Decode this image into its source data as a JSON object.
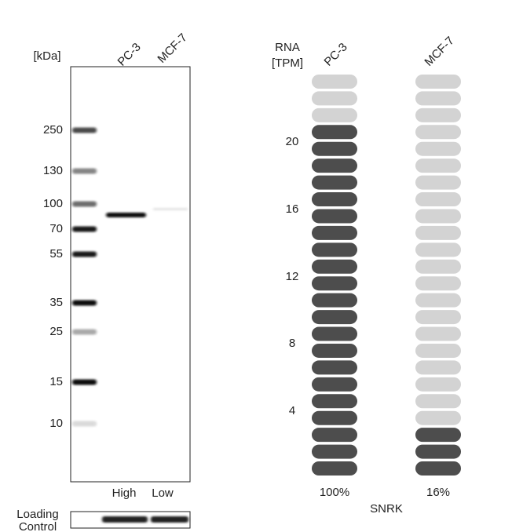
{
  "blot": {
    "unit_label": "[kDa]",
    "lanes": [
      "PC-3",
      "MCF-7"
    ],
    "markers": [
      "250",
      "130",
      "100",
      "70",
      "55",
      "35",
      "25",
      "15",
      "10"
    ],
    "levels": [
      "High",
      "Low"
    ],
    "loading_control": [
      "Loading",
      "Control"
    ]
  },
  "rna": {
    "axis_label": [
      "RNA",
      "[TPM]"
    ],
    "ticks": [
      "20",
      "16",
      "12",
      "8",
      "4"
    ],
    "columns": [
      {
        "name": "PC-3",
        "percent": "100%",
        "filled": 21
      },
      {
        "name": "MCF-7",
        "percent": "16%",
        "filled": 3
      }
    ],
    "gene": "SNRK"
  }
}
